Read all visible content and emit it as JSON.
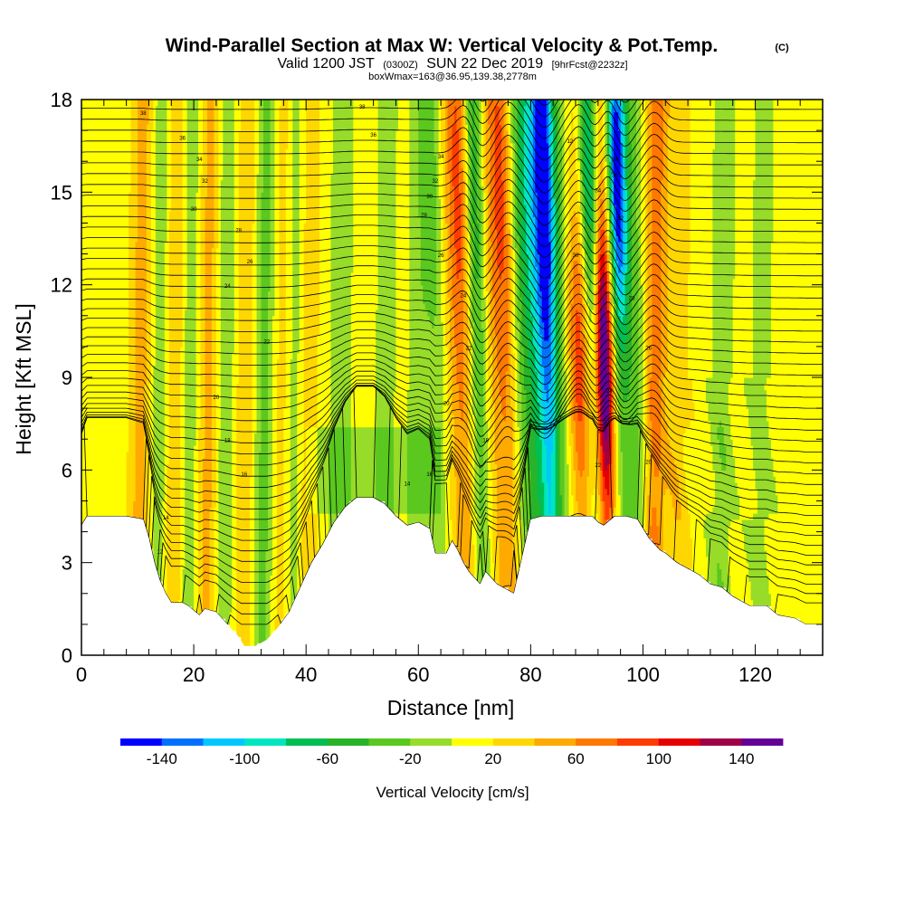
{
  "title": {
    "main": "Wind-Parallel Section at Max W: Vertical Velocity & Pot.Temp.",
    "copyright": "(C)",
    "valid_a": "Valid 1200 JST",
    "valid_b": "(0300Z)",
    "valid_c": "SUN 22 Dec 2019",
    "valid_d": "[9hrFcst@2232z]",
    "box": "boxWmax=163@36.95,139.38,2778m"
  },
  "chart_data": {
    "type": "heatmap",
    "title": "Wind-Parallel Section at Max W: Vertical Velocity & Pot.Temp.",
    "xlabel": "Distance [nm]",
    "ylabel": "Height [Kft MSL]",
    "xlim": [
      0,
      132
    ],
    "ylim": [
      0,
      18
    ],
    "x_ticks": [
      "0",
      "20",
      "40",
      "60",
      "80",
      "100",
      "120"
    ],
    "y_ticks": [
      "0",
      "3",
      "6",
      "9",
      "12",
      "15",
      "18"
    ],
    "colorbar": {
      "label": "Vertical Velocity [cm/s]",
      "tick_labels": [
        "-140",
        "-100",
        "-60",
        "-20",
        "20",
        "60",
        "100",
        "140"
      ],
      "bins": [
        -160,
        -140,
        -120,
        -100,
        -80,
        -60,
        -40,
        -20,
        0,
        20,
        40,
        60,
        80,
        100,
        120,
        140,
        160
      ],
      "colors": [
        "#0000ff",
        "#0070ff",
        "#00c8ff",
        "#00e6c0",
        "#00be50",
        "#28b428",
        "#5ac81e",
        "#96dc28",
        "#ffff00",
        "#ffd700",
        "#ffaa00",
        "#ff7800",
        "#ff3c00",
        "#e60000",
        "#a00046",
        "#640096"
      ]
    },
    "terrain_kft": [
      [
        0,
        4.2
      ],
      [
        1,
        4.5
      ],
      [
        3,
        4.5
      ],
      [
        8,
        4.5
      ],
      [
        11,
        4.4
      ],
      [
        12,
        3.8
      ],
      [
        13,
        3.0
      ],
      [
        14,
        2.4
      ],
      [
        15,
        2.0
      ],
      [
        16,
        1.7
      ],
      [
        18,
        1.7
      ],
      [
        19,
        1.6
      ],
      [
        21,
        1.3
      ],
      [
        22,
        1.5
      ],
      [
        24,
        1.4
      ],
      [
        26,
        1.0
      ],
      [
        28,
        0.6
      ],
      [
        29,
        0.3
      ],
      [
        31,
        0.3
      ],
      [
        33,
        0.5
      ],
      [
        35,
        0.9
      ],
      [
        37,
        1.4
      ],
      [
        39,
        2.2
      ],
      [
        41,
        3.0
      ],
      [
        43,
        3.6
      ],
      [
        45,
        4.3
      ],
      [
        47,
        4.8
      ],
      [
        49,
        5.1
      ],
      [
        52,
        5.1
      ],
      [
        54,
        4.9
      ],
      [
        56,
        4.5
      ],
      [
        58,
        4.2
      ],
      [
        60,
        4.3
      ],
      [
        62,
        4.1
      ],
      [
        63,
        3.3
      ],
      [
        65,
        3.3
      ],
      [
        66,
        3.7
      ],
      [
        67,
        3.4
      ],
      [
        68,
        3.0
      ],
      [
        69,
        2.7
      ],
      [
        71,
        2.3
      ],
      [
        72,
        2.7
      ],
      [
        73,
        2.5
      ],
      [
        74,
        2.3
      ],
      [
        76,
        2.1
      ],
      [
        77,
        2.0
      ],
      [
        78,
        2.8
      ],
      [
        79,
        3.6
      ],
      [
        80,
        4.4
      ],
      [
        82,
        4.5
      ],
      [
        85,
        4.5
      ],
      [
        87,
        4.5
      ],
      [
        89,
        4.5
      ],
      [
        91,
        4.5
      ],
      [
        92,
        4.3
      ],
      [
        93,
        4.2
      ],
      [
        95,
        4.5
      ],
      [
        97,
        4.5
      ],
      [
        99,
        4.4
      ],
      [
        100,
        4.1
      ],
      [
        101,
        3.8
      ],
      [
        103,
        3.4
      ],
      [
        104,
        3.3
      ],
      [
        106,
        3.0
      ],
      [
        108,
        2.8
      ],
      [
        110,
        2.6
      ],
      [
        112,
        2.3
      ],
      [
        114,
        2.2
      ],
      [
        116,
        1.9
      ],
      [
        119,
        1.6
      ],
      [
        122,
        1.6
      ],
      [
        124,
        1.3
      ],
      [
        127,
        1.2
      ],
      [
        129,
        1.0
      ],
      [
        132,
        1.0
      ]
    ],
    "w_features_cm_s": [
      {
        "x": 10.5,
        "value": 40
      },
      {
        "x": 14,
        "value": -30
      },
      {
        "x": 16.5,
        "value": 40
      },
      {
        "x": 19,
        "value": -30
      },
      {
        "x": 22.5,
        "value": 40
      },
      {
        "x": 25.5,
        "value": -30
      },
      {
        "x": 29,
        "value": 30
      },
      {
        "x": 32.5,
        "value": -40
      },
      {
        "x": 35.5,
        "value": 25
      },
      {
        "x": 38,
        "value": -30
      },
      {
        "x": 40,
        "value": 30
      },
      {
        "x": 46,
        "value": -25
      },
      {
        "x": 54,
        "value": -20
      },
      {
        "x": 60,
        "value": -25
      },
      {
        "x": 64,
        "value": -40
      },
      {
        "x": 66,
        "value": 30
      },
      {
        "x": 68.5,
        "value": 80
      },
      {
        "x": 71,
        "value": -80
      },
      {
        "x": 73.5,
        "value": 40
      },
      {
        "x": 76,
        "value": 70
      },
      {
        "x": 79,
        "value": -50
      },
      {
        "x": 81.5,
        "value": -90
      },
      {
        "x": 83.5,
        "value": -140
      },
      {
        "x": 85.5,
        "value": -50
      },
      {
        "x": 89,
        "value": 80
      },
      {
        "x": 91.5,
        "value": -100
      },
      {
        "x": 93.5,
        "value": 160
      },
      {
        "x": 96.5,
        "value": -160
      },
      {
        "x": 99,
        "value": -40
      },
      {
        "x": 102,
        "value": 60
      },
      {
        "x": 106,
        "value": 25
      },
      {
        "x": 114,
        "value": -25
      },
      {
        "x": 121,
        "value": -20
      }
    ],
    "contour_labels": [
      "38",
      "36",
      "34",
      "32",
      "30",
      "28",
      "26",
      "24",
      "22",
      "20",
      "18",
      "16",
      "14",
      "12"
    ]
  }
}
